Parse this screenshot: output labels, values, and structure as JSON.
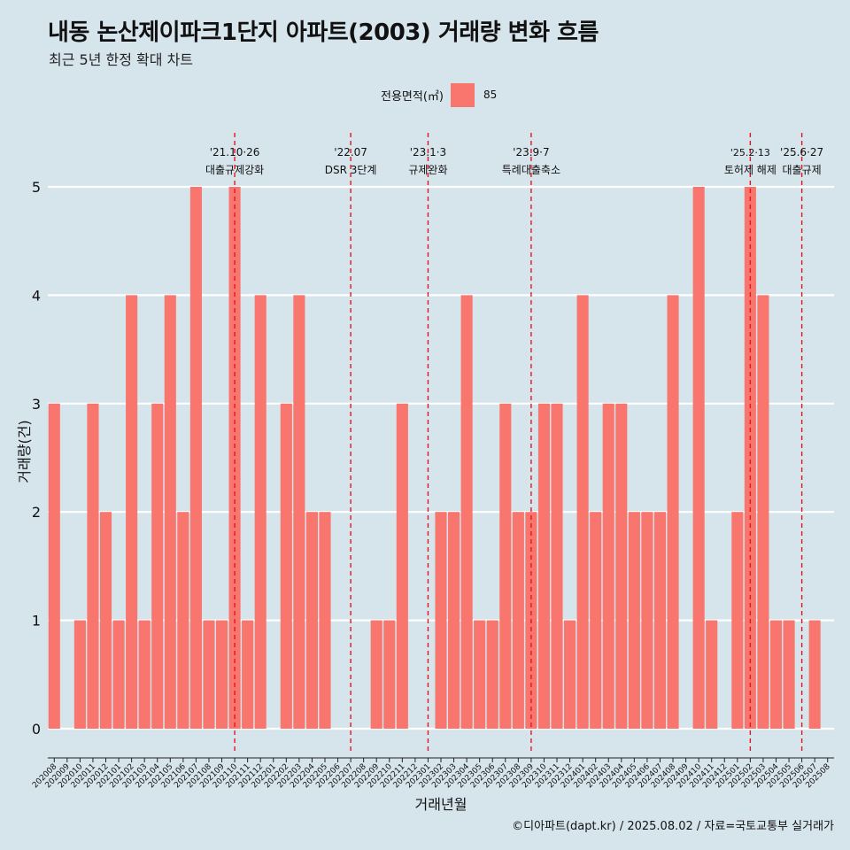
{
  "title": "내동 논산제이파크1단지 아파트(2003) 거래량 변화 흐름",
  "subtitle": "최근 5년 한정 확대 차트",
  "legend": {
    "title": "전용면적(㎡)",
    "entry": "85",
    "color": "#f8766d"
  },
  "caption": "©디아파트(dapt.kr) / 2025.08.02 / 자료=국토교통부 실거래가",
  "chart_data": {
    "type": "bar",
    "xlabel": "거래년월",
    "ylabel": "거래량(건)",
    "ylim": [
      0,
      5
    ],
    "yticks": [
      0,
      1,
      2,
      3,
      4,
      5
    ],
    "grid": true,
    "legend_position": "top",
    "bar_color": "#f8766d",
    "categories": [
      "202008",
      "202009",
      "202010",
      "202011",
      "202012",
      "202101",
      "202102",
      "202103",
      "202104",
      "202105",
      "202106",
      "202107",
      "202108",
      "202109",
      "202110",
      "202111",
      "202112",
      "202201",
      "202202",
      "202203",
      "202204",
      "202205",
      "202206",
      "202207",
      "202208",
      "202209",
      "202210",
      "202211",
      "202212",
      "202301",
      "202302",
      "202303",
      "202304",
      "202305",
      "202306",
      "202307",
      "202308",
      "202309",
      "202310",
      "202311",
      "202312",
      "202401",
      "202402",
      "202403",
      "202404",
      "202405",
      "202406",
      "202407",
      "202408",
      "202409",
      "202410",
      "202411",
      "202412",
      "202501",
      "202502",
      "202503",
      "202504",
      "202505",
      "202506",
      "202507",
      "202508"
    ],
    "series": [
      {
        "name": "85",
        "values": [
          3,
          0,
          1,
          3,
          2,
          1,
          4,
          1,
          3,
          4,
          2,
          5,
          1,
          1,
          5,
          1,
          4,
          0,
          3,
          4,
          2,
          2,
          0,
          0,
          0,
          1,
          1,
          3,
          0,
          0,
          2,
          2,
          4,
          1,
          1,
          3,
          2,
          2,
          3,
          3,
          1,
          4,
          2,
          3,
          3,
          2,
          2,
          2,
          4,
          0,
          5,
          1,
          0,
          2,
          5,
          4,
          1,
          1,
          0,
          1,
          0
        ]
      }
    ],
    "annotations": [
      {
        "category": "202110",
        "line1": "'21.10·26",
        "line2": "대출규제강화"
      },
      {
        "category": "202207",
        "line1": "'22.07",
        "line2": "DSR 3단계"
      },
      {
        "category": "202301",
        "line1": "'23.1·3",
        "line2": "규제완화"
      },
      {
        "category": "202309",
        "line1": "'23.9·7",
        "line2": "특례대출축소"
      },
      {
        "category": "202502",
        "line1": "'25.2·13",
        "line2": "토허제 해제"
      },
      {
        "category": "202506",
        "line1": "'25.6·27",
        "line2": "대출규제"
      }
    ]
  }
}
